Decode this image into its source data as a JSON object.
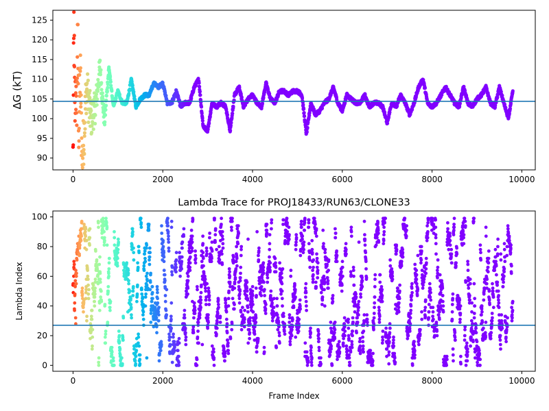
{
  "chart_data": [
    {
      "type": "scatter",
      "title": "",
      "xlabel": "",
      "ylabel": "ΔG (kT)",
      "xlim": [
        -450,
        10300
      ],
      "ylim": [
        87,
        127.5
      ],
      "xticks": [
        0,
        2000,
        4000,
        6000,
        8000,
        10000
      ],
      "yticks": [
        90,
        95,
        100,
        105,
        110,
        115,
        120,
        125
      ],
      "xtick_labels": [
        "0",
        "2000",
        "4000",
        "6000",
        "8000",
        "10000"
      ],
      "ytick_labels": [
        "90",
        "95",
        "100",
        "105",
        "110",
        "115",
        "120",
        "125"
      ],
      "hline": 104.4,
      "hline_color": "#1f77b4",
      "colormap": "rainbow (red at frame 0 → violet at frame 9800)",
      "grid": false,
      "legend": "none",
      "series": [
        {
          "x": [
            0,
            20,
            40,
            60,
            80,
            100,
            130,
            160,
            200,
            250,
            300,
            400,
            500,
            600,
            700,
            800,
            900,
            1000,
            1100,
            1200,
            1300,
            1400,
            1500,
            1600,
            1700,
            1800,
            1900,
            2000,
            2100,
            2200,
            2300,
            2400,
            2500,
            2600,
            2700,
            2800,
            2900,
            3000,
            3100,
            3200,
            3300,
            3400,
            3500,
            3600,
            3700,
            3800,
            3900,
            4000,
            4100,
            4200,
            4300,
            4400,
            4500,
            4600,
            4700,
            4800,
            4900,
            5000,
            5100,
            5200,
            5300,
            5400,
            5500,
            5600,
            5700,
            5800,
            5900,
            6000,
            6100,
            6200,
            6300,
            6400,
            6500,
            6600,
            6700,
            6800,
            6900,
            7000,
            7100,
            7200,
            7300,
            7400,
            7500,
            7600,
            7700,
            7800,
            7900,
            8000,
            8100,
            8200,
            8300,
            8400,
            8500,
            8600,
            8700,
            8800,
            8900,
            9000,
            9100,
            9200,
            9300,
            9400,
            9500,
            9600,
            9700,
            9800
          ],
          "y": [
            90,
            124,
            100,
            111,
            92,
            126,
            96,
            113,
            89,
            97,
            108,
            100,
            103,
            113,
            99,
            113,
            103,
            107,
            104,
            104,
            110,
            103,
            105,
            106,
            106,
            109,
            108,
            109,
            104,
            104,
            107,
            103,
            104,
            104,
            108,
            110,
            98,
            97,
            104,
            103,
            104,
            103,
            97,
            106,
            108,
            103,
            105,
            106,
            104,
            103,
            109,
            105,
            104,
            107,
            107,
            106,
            107,
            107,
            106,
            96,
            104,
            101,
            102,
            104,
            105,
            108,
            104,
            102,
            106,
            105,
            104,
            104,
            106,
            103,
            104,
            104,
            103,
            99,
            104,
            103,
            106,
            104,
            101,
            104,
            108,
            110,
            104,
            103,
            104,
            106,
            108,
            106,
            104,
            103,
            108,
            104,
            103,
            105,
            106,
            108,
            104,
            103,
            108,
            104,
            100,
            107
          ]
        }
      ]
    },
    {
      "type": "scatter",
      "title": "Lambda Trace for PROJ18433/RUN63/CLONE33",
      "xlabel": "Frame Index",
      "ylabel": "Lambda Index",
      "xlim": [
        -450,
        10300
      ],
      "ylim": [
        -4,
        104
      ],
      "xticks": [
        0,
        2000,
        4000,
        6000,
        8000,
        10000
      ],
      "yticks": [
        0,
        20,
        40,
        60,
        80,
        100
      ],
      "xtick_labels": [
        "0",
        "2000",
        "4000",
        "6000",
        "8000",
        "10000"
      ],
      "ytick_labels": [
        "0",
        "20",
        "40",
        "60",
        "80",
        "100"
      ],
      "hline": 27,
      "hline_color": "#1f77b4",
      "colormap": "rainbow (red at frame 0 → violet at frame 9800)",
      "grid": false,
      "legend": "none",
      "series": [
        {
          "x_range": [
            0,
            9800
          ],
          "y_range": [
            0,
            99
          ],
          "note_visual": "dense lambda index samples spanning 0 to 99 across all frames"
        }
      ]
    }
  ]
}
